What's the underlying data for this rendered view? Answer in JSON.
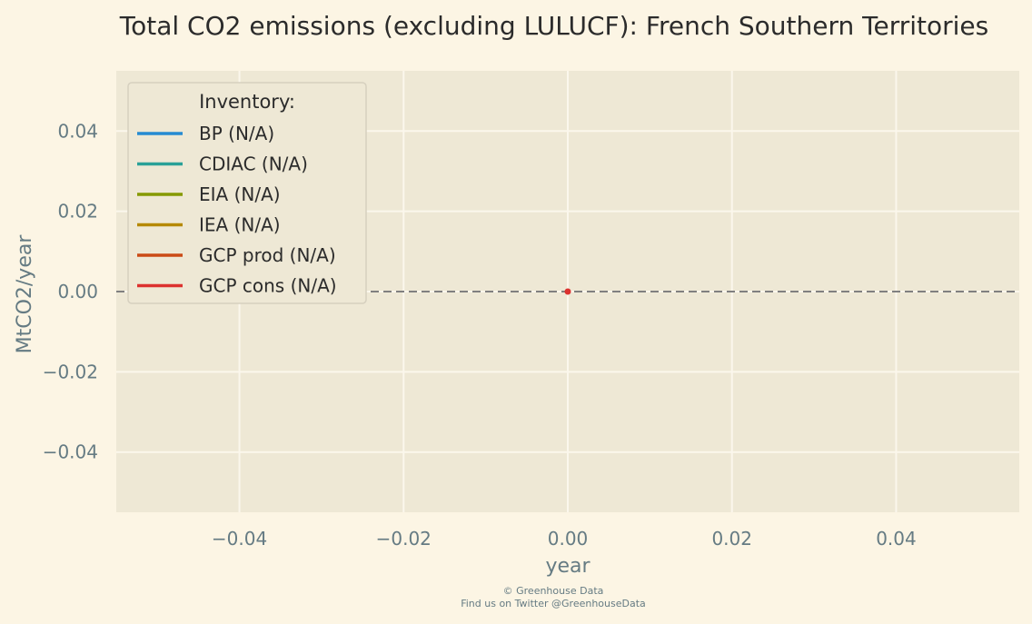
{
  "chart_data": {
    "type": "line",
    "title": "Total CO2 emissions (excluding LULUCF): French Southern Territories",
    "xlabel": "year",
    "ylabel": "MtCO2/year",
    "xlim": [
      -0.055,
      0.055
    ],
    "ylim": [
      -0.055,
      0.055
    ],
    "xticks": [
      -0.04,
      -0.02,
      0.0,
      0.02,
      0.04
    ],
    "xtick_labels": [
      "−0.04",
      "−0.02",
      "0.00",
      "0.02",
      "0.04"
    ],
    "yticks": [
      0.04,
      0.02,
      0.0,
      -0.02,
      -0.04
    ],
    "ytick_labels": [
      "0.04",
      "0.02",
      "0.00",
      "−0.02",
      "−0.04"
    ],
    "grid": true,
    "reference_line": {
      "y": 0,
      "style": "dashed",
      "color": "#808080"
    },
    "legend": {
      "title": "Inventory:",
      "placement": "top-left",
      "entries": [
        {
          "name": "BP (N/A)",
          "color": "#268bd2"
        },
        {
          "name": "CDIAC (N/A)",
          "color": "#2aa198"
        },
        {
          "name": "EIA (N/A)",
          "color": "#859900"
        },
        {
          "name": "IEA (N/A)",
          "color": "#b58900"
        },
        {
          "name": "GCP prod (N/A)",
          "color": "#cb4b16"
        },
        {
          "name": "GCP cons (N/A)",
          "color": "#dc322f"
        }
      ]
    },
    "series": [
      {
        "name": "GCP cons (N/A)",
        "color": "#dc322f",
        "x": [
          0
        ],
        "y": [
          0
        ]
      }
    ]
  },
  "footer": {
    "line1": "© Greenhouse Data",
    "line2": "Find us on Twitter @GreenhouseData"
  },
  "colors": {
    "background": "#fcf5e4",
    "plot_area": "#eee8d5",
    "grid": "#fbf7ec",
    "tick_text": "#657b83",
    "title_text": "#2b2b2b"
  }
}
